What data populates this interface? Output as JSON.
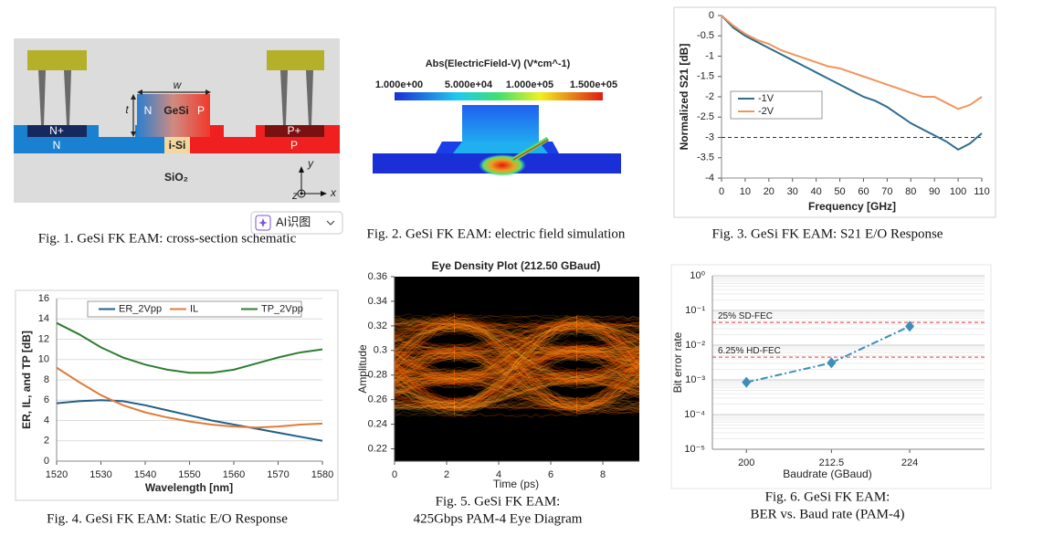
{
  "schematic": {
    "w": "w",
    "t": "t",
    "ge_n": "N",
    "gesi": "GeSi",
    "ge_p": "P",
    "n_plus": "N+",
    "n": "N",
    "i_si": "i-Si",
    "p_plus": "P+",
    "p": "P",
    "sio2": "SiO₂",
    "axis_y": "y",
    "axis_z": "z",
    "axis_x": "x",
    "caption": "Fig. 1. GeSi FK EAM: cross-section schematic"
  },
  "simulation": {
    "title": "Abs(ElectricField-V) (V*cm^-1)",
    "colorbar_labels": [
      "1.000e+00",
      "5.000e+04",
      "1.000e+05",
      "1.500e+05"
    ],
    "caption": "Fig. 2. GeSi FK EAM: electric field simulation"
  },
  "overlay": {
    "button": "AI识图"
  },
  "chart_data": [
    {
      "type": "line",
      "caption": [
        "Fig. 3. GeSi FK EAM: S21 E/O Response"
      ],
      "x_label": "Frequency [GHz]",
      "y_label": "Normalized S21 [dB]",
      "x": [
        0,
        5,
        10,
        15,
        20,
        25,
        30,
        35,
        40,
        45,
        50,
        55,
        60,
        65,
        70,
        75,
        80,
        85,
        90,
        95,
        100,
        105,
        110
      ],
      "series": [
        {
          "name": "-1V",
          "color": "#2f6d8f",
          "values": [
            0,
            -0.3,
            -0.5,
            -0.65,
            -0.8,
            -0.95,
            -1.1,
            -1.25,
            -1.4,
            -1.55,
            -1.7,
            -1.85,
            -2.0,
            -2.1,
            -2.25,
            -2.45,
            -2.65,
            -2.8,
            -2.95,
            -3.1,
            -3.3,
            -3.15,
            -2.9
          ]
        },
        {
          "name": "-2V",
          "color": "#f0955a",
          "values": [
            0,
            -0.25,
            -0.45,
            -0.6,
            -0.7,
            -0.85,
            -0.95,
            -1.05,
            -1.15,
            -1.25,
            -1.3,
            -1.4,
            -1.5,
            -1.6,
            -1.7,
            -1.8,
            -1.9,
            -2.0,
            -2.0,
            -2.15,
            -2.3,
            -2.2,
            -2.0
          ]
        }
      ],
      "xlim": [
        0,
        110
      ],
      "xticks": [
        0,
        10,
        20,
        30,
        40,
        50,
        60,
        70,
        80,
        90,
        100,
        110
      ],
      "ylim": [
        -4,
        0
      ],
      "yticks": [
        0,
        -0.5,
        -1,
        -1.5,
        -2,
        -2.5,
        -3,
        -3.5,
        -4
      ],
      "hlines": [
        {
          "value": -3
        }
      ],
      "grid": false,
      "legend": "center-left"
    },
    {
      "type": "line",
      "caption": [
        "Fig. 4. GeSi FK EAM: Static E/O Response"
      ],
      "x_label": "Wavelength [nm]",
      "y_label": "ER, IL, and TP [dB]",
      "x": [
        1520,
        1525,
        1530,
        1535,
        1540,
        1545,
        1550,
        1555,
        1560,
        1565,
        1570,
        1575,
        1580
      ],
      "series": [
        {
          "name": "ER_2Vpp",
          "color": "#1f5f8b",
          "values": [
            5.7,
            5.9,
            6.0,
            5.9,
            5.5,
            5.0,
            4.5,
            4.0,
            3.6,
            3.2,
            2.8,
            2.4,
            2.0
          ]
        },
        {
          "name": "IL",
          "color": "#e07b39",
          "values": [
            9.2,
            7.8,
            6.5,
            5.5,
            4.8,
            4.3,
            3.9,
            3.6,
            3.4,
            3.3,
            3.4,
            3.6,
            3.7
          ]
        },
        {
          "name": "TP_2Vpp",
          "color": "#2e7d32",
          "values": [
            13.6,
            12.5,
            11.2,
            10.2,
            9.5,
            9.0,
            8.7,
            8.7,
            9.0,
            9.6,
            10.2,
            10.7,
            11.0
          ]
        }
      ],
      "xlim": [
        1520,
        1580
      ],
      "xticks": [
        1520,
        1530,
        1540,
        1550,
        1560,
        1570,
        1580
      ],
      "ylim": [
        0,
        16
      ],
      "yticks": [
        0,
        2,
        4,
        6,
        8,
        10,
        12,
        14,
        16
      ],
      "grid": true,
      "legend": "top"
    },
    {
      "type": "eye",
      "title": "Eye Density Plot (212.50 GBaud)",
      "caption": [
        "Fig. 5. GeSi FK EAM:",
        "425Gbps PAM-4 Eye Diagram"
      ],
      "x_label": "Time (ps)",
      "y_label": "Amplitude",
      "levels": [
        0.255,
        0.277,
        0.299,
        0.321
      ],
      "eye_centers": [
        2.3,
        7.0
      ],
      "xlim": [
        0,
        9.4
      ],
      "xticks": [
        0,
        2,
        4,
        6,
        8
      ],
      "ylim": [
        0.21,
        0.36
      ],
      "yticks": [
        0.22,
        0.24,
        0.26,
        0.28,
        0.3,
        0.32,
        0.34,
        0.36
      ],
      "grid": false
    },
    {
      "type": "line",
      "caption": [
        "Fig. 6. GeSi FK EAM:",
        "BER vs. Baud rate (PAM-4)"
      ],
      "x_label": "Baudrate (GBaud)",
      "y_label": "Bit error rate",
      "x": [
        200,
        212.5,
        224
      ],
      "values": [
        0.00085,
        0.0031,
        0.035
      ],
      "color": "#3d8fb8",
      "marker": "diamond",
      "line_style": "dashdot",
      "xlim": [
        195,
        235
      ],
      "xticks": [
        200,
        212.5,
        224
      ],
      "ylim": [
        1e-05,
        1
      ],
      "log_y": true,
      "yticks": [
        {
          "value": 1,
          "label": "10⁰"
        },
        {
          "value": 0.1,
          "label": "10⁻¹"
        },
        {
          "value": 0.01,
          "label": "10⁻²"
        },
        {
          "value": 0.001,
          "label": "10⁻³"
        },
        {
          "value": 0.0001,
          "label": "10⁻⁴"
        },
        {
          "value": 1e-05,
          "label": "10⁻⁵"
        }
      ],
      "hlines": [
        {
          "value": 0.045,
          "label": "25% SD-FEC",
          "color": "#e03a3a"
        },
        {
          "value": 0.0045,
          "label": "6.25% HD-FEC",
          "color": "#e03a3a"
        }
      ],
      "grid": true
    }
  ]
}
